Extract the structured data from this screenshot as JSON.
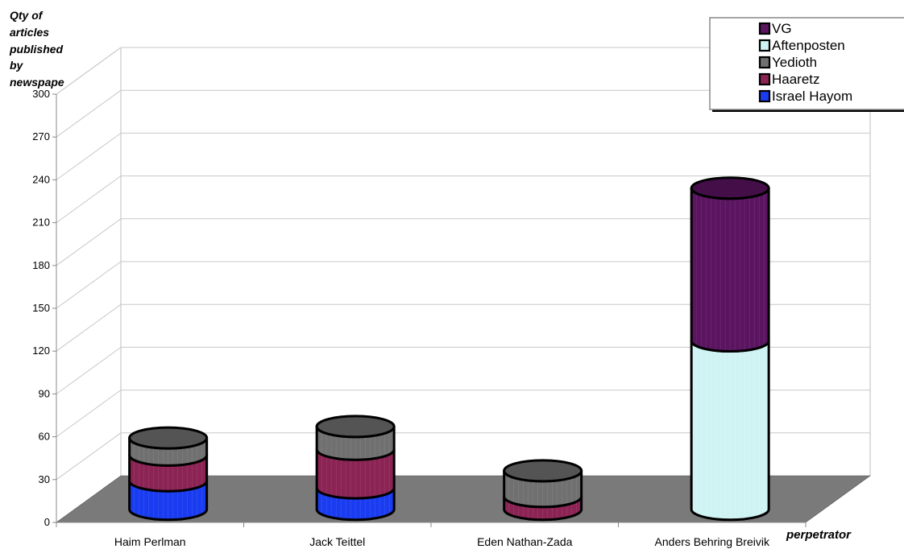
{
  "chart_data": {
    "type": "bar",
    "style": "3d-stacked-cylinder",
    "title": "",
    "ylabel": "Qty of articles published by newspape",
    "ylabel_lines": [
      "Qty of",
      "articles",
      "published",
      "by",
      "newspape"
    ],
    "xlabel": "perpetrator",
    "ylim": [
      0,
      300
    ],
    "yticks": [
      0,
      30,
      60,
      90,
      120,
      150,
      180,
      210,
      240,
      270,
      300
    ],
    "grid": true,
    "legend_position": "top-right",
    "categories": [
      "Haim Perlman",
      "Jack Teittel",
      "Eden Nathan-Zada",
      "Anders Behring Breivik"
    ],
    "series": [
      {
        "name": "Israel Hayom",
        "color": "#1a3cf0",
        "values": [
          20,
          15,
          0,
          0
        ]
      },
      {
        "name": "Haaretz",
        "color": "#8b2454",
        "values": [
          18,
          27,
          9,
          0
        ]
      },
      {
        "name": "Yedioth",
        "color": "#707070",
        "values": [
          12,
          16,
          18,
          0
        ]
      },
      {
        "name": "Aftenposten",
        "color": "#cff3f3",
        "values": [
          0,
          0,
          0,
          118
        ]
      },
      {
        "name": "VG",
        "color": "#5a1460",
        "values": [
          0,
          0,
          0,
          107
        ]
      }
    ],
    "legend_order": [
      "VG",
      "Aftenposten",
      "Yedioth",
      "Haaretz",
      "Israel Hayom"
    ],
    "floor_color": "#7a7a7a"
  }
}
